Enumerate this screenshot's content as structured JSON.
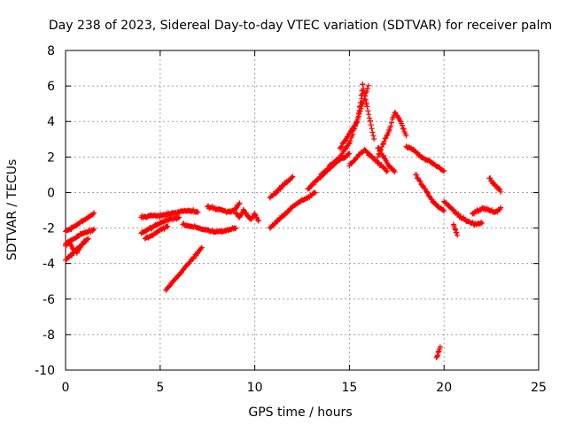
{
  "chart_data": {
    "type": "scatter",
    "title": "Day 238 of 2023, Sidereal Day-to-day VTEC variation (SDTVAR) for receiver palm",
    "xlabel": "GPS time / hours",
    "ylabel": "SDTVAR / TECUs",
    "xlim": [
      0,
      25
    ],
    "ylim": [
      -10,
      8
    ],
    "xticks": [
      0,
      5,
      10,
      15,
      20,
      25
    ],
    "yticks": [
      -10,
      -8,
      -6,
      -4,
      -2,
      0,
      2,
      4,
      6,
      8
    ],
    "xtick_labels": [
      "0",
      "5",
      "10",
      "15",
      "20",
      "25"
    ],
    "ytick_labels": [
      "-10",
      "-8",
      "-6",
      "-4",
      "-2",
      "0",
      "2",
      "4",
      "6",
      "8"
    ],
    "grid": true,
    "marker": "+",
    "series_color": "#ff0000",
    "series": [
      {
        "name": "SDTVAR",
        "tracks": [
          {
            "x": [
              0.0,
              0.3,
              0.6,
              0.9,
              1.2,
              1.5
            ],
            "y": [
              -2.2,
              -2.0,
              -1.8,
              -1.6,
              -1.4,
              -1.2
            ]
          },
          {
            "x": [
              0.0,
              0.3,
              0.6,
              0.9,
              1.2,
              1.5
            ],
            "y": [
              -2.9,
              -2.7,
              -2.5,
              -2.3,
              -2.2,
              -2.1
            ]
          },
          {
            "x": [
              0.0,
              0.3,
              0.6,
              0.9,
              1.2
            ],
            "y": [
              -3.8,
              -3.5,
              -3.2,
              -2.9,
              -2.6
            ]
          },
          {
            "x": [
              0.0,
              0.2,
              0.4,
              0.6,
              0.8,
              1.0
            ],
            "y": [
              -3.0,
              -2.8,
              -3.2,
              -3.4,
              -3.0,
              -2.7
            ]
          },
          {
            "x": [
              4.0,
              4.5,
              5.0,
              5.5,
              6.0,
              6.5,
              7.0
            ],
            "y": [
              -1.4,
              -1.3,
              -1.3,
              -1.2,
              -1.1,
              -1.0,
              -1.1
            ]
          },
          {
            "x": [
              4.0,
              4.5,
              5.0,
              5.5,
              6.0
            ],
            "y": [
              -2.3,
              -2.0,
              -1.7,
              -1.5,
              -1.4
            ]
          },
          {
            "x": [
              4.2,
              4.6,
              5.0,
              5.4
            ],
            "y": [
              -2.6,
              -2.4,
              -2.1,
              -1.9
            ]
          },
          {
            "x": [
              5.3,
              5.7,
              6.1,
              6.5,
              6.9,
              7.2
            ],
            "y": [
              -5.5,
              -5.0,
              -4.5,
              -4.0,
              -3.5,
              -3.1
            ]
          },
          {
            "x": [
              6.2,
              6.6,
              7.0,
              7.4,
              7.8,
              8.2,
              8.6,
              9.0
            ],
            "y": [
              -1.8,
              -1.9,
              -2.0,
              -2.1,
              -2.2,
              -2.2,
              -2.1,
              -2.0
            ]
          },
          {
            "x": [
              7.5,
              7.9,
              8.3,
              8.7,
              9.0,
              9.2
            ],
            "y": [
              -0.8,
              -0.9,
              -1.0,
              -1.1,
              -0.9,
              -0.6
            ]
          },
          {
            "x": [
              9.0,
              9.2,
              9.4,
              9.6,
              9.8,
              10.0,
              10.2
            ],
            "y": [
              -1.2,
              -1.4,
              -1.0,
              -1.3,
              -1.5,
              -1.2,
              -1.6
            ]
          },
          {
            "x": [
              10.8,
              11.2,
              11.6,
              12.0,
              12.4,
              12.8,
              13.2
            ],
            "y": [
              -2.0,
              -1.6,
              -1.2,
              -0.8,
              -0.5,
              -0.3,
              0.0
            ]
          },
          {
            "x": [
              10.8,
              11.1,
              11.4,
              11.7,
              12.0
            ],
            "y": [
              -0.3,
              0.0,
              0.3,
              0.6,
              0.9
            ]
          },
          {
            "x": [
              12.8,
              13.2,
              13.6,
              14.0,
              14.4,
              14.8,
              15.0
            ],
            "y": [
              0.2,
              0.6,
              1.0,
              1.4,
              1.8,
              2.0,
              2.2
            ]
          },
          {
            "x": [
              13.5,
              14.0,
              14.5,
              15.0,
              15.4,
              15.7
            ],
            "y": [
              1.0,
              1.5,
              2.0,
              2.8,
              4.0,
              5.5
            ]
          },
          {
            "x": [
              14.5,
              14.8,
              15.1,
              15.4,
              15.7,
              16.0
            ],
            "y": [
              2.5,
              3.0,
              3.5,
              4.0,
              5.0,
              6.0
            ]
          },
          {
            "x": [
              15.5,
              15.7,
              15.9,
              16.1,
              16.3
            ],
            "y": [
              4.5,
              6.1,
              5.0,
              4.0,
              3.0
            ]
          },
          {
            "x": [
              15.0,
              15.4,
              15.8,
              16.2,
              16.6,
              17.0
            ],
            "y": [
              1.5,
              2.0,
              2.4,
              2.0,
              1.6,
              1.2
            ]
          },
          {
            "x": [
              16.5,
              16.8,
              17.1,
              17.4,
              17.7,
              18.0
            ],
            "y": [
              2.0,
              2.8,
              3.5,
              4.5,
              4.0,
              3.2
            ]
          },
          {
            "x": [
              16.5,
              16.8,
              17.1,
              17.4
            ],
            "y": [
              2.5,
              2.0,
              1.5,
              1.2
            ]
          },
          {
            "x": [
              18.0,
              18.4,
              18.8,
              19.2,
              19.6,
              20.0
            ],
            "y": [
              2.6,
              2.4,
              2.0,
              1.8,
              1.5,
              1.2
            ]
          },
          {
            "x": [
              18.5,
              18.8,
              19.1,
              19.4,
              19.7,
              20.0
            ],
            "y": [
              1.0,
              0.5,
              0.0,
              -0.5,
              -0.8,
              -1.0
            ]
          },
          {
            "x": [
              20.0,
              20.3,
              20.6,
              20.9,
              21.2,
              21.6,
              22.0
            ],
            "y": [
              -0.5,
              -0.8,
              -1.1,
              -1.4,
              -1.6,
              -1.8,
              -1.7
            ]
          },
          {
            "x": [
              20.5,
              20.6,
              20.7
            ],
            "y": [
              -1.8,
              -2.1,
              -2.4
            ]
          },
          {
            "x": [
              21.5,
              21.8,
              22.1,
              22.4,
              22.7,
              23.0
            ],
            "y": [
              -1.2,
              -1.0,
              -0.9,
              -1.0,
              -1.1,
              -0.9
            ]
          },
          {
            "x": [
              22.4,
              22.6,
              22.8,
              23.0
            ],
            "y": [
              0.8,
              0.5,
              0.3,
              0.1
            ]
          },
          {
            "x": [
              19.6,
              19.7,
              19.8
            ],
            "y": [
              -9.3,
              -9.0,
              -8.7
            ]
          }
        ]
      }
    ]
  }
}
